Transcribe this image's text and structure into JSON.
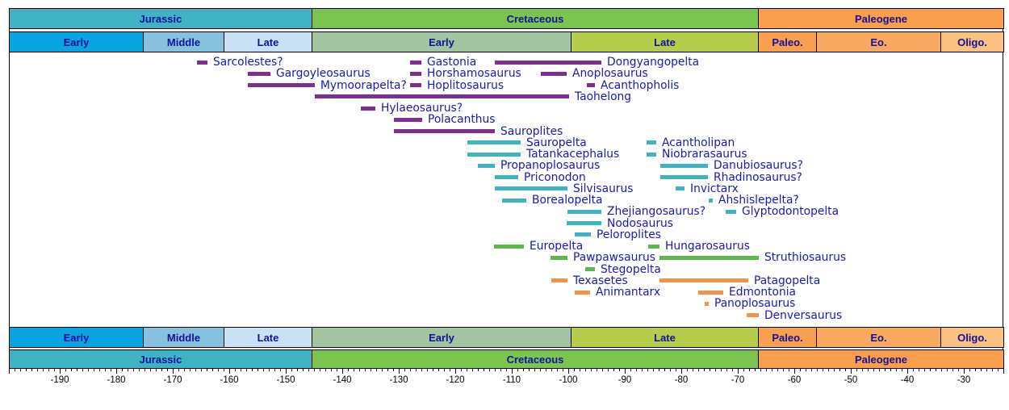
{
  "chart_data": {
    "type": "timeline",
    "x_axis": {
      "unit": "Ma",
      "min": -199,
      "max": -23,
      "major_ticks": [
        -190,
        -180,
        -170,
        -160,
        -150,
        -140,
        -130,
        -120,
        -110,
        -100,
        -90,
        -80,
        -70,
        -60,
        -50,
        -40,
        -30
      ],
      "minor_tick_step": 1
    },
    "periods": [
      {
        "label": "Jurassic",
        "from": -199,
        "to": -145.4,
        "color": "#3fb2c4"
      },
      {
        "label": "Cretaceous",
        "from": -145.4,
        "to": -66.4,
        "color": "#7cc450"
      },
      {
        "label": "Paleogene",
        "from": -66.4,
        "to": -23,
        "color": "#f99e4c"
      }
    ],
    "epochs": [
      {
        "label": "Early",
        "from": -199,
        "to": -175.3,
        "color": "#09a5e0"
      },
      {
        "label": "Middle",
        "from": -175.3,
        "to": -161.0,
        "color": "#87c1dd"
      },
      {
        "label": "Late",
        "from": -161.0,
        "to": -145.4,
        "color": "#c9e1f4"
      },
      {
        "label": "Early",
        "from": -145.4,
        "to": -99.6,
        "color": "#a2c4a0"
      },
      {
        "label": "Late",
        "from": -99.6,
        "to": -66.4,
        "color": "#b5cd4a"
      },
      {
        "label": "Paleo.",
        "from": -66.4,
        "to": -56.1,
        "color": "#f9a050"
      },
      {
        "label": "Eo.",
        "from": -56.1,
        "to": -34.1,
        "color": "#faaa60"
      },
      {
        "label": "Oligo.",
        "from": -34.1,
        "to": -23,
        "color": "#fbc181"
      }
    ],
    "groups": {
      "purple": "#7e2d90",
      "teal": "#3fb3c4",
      "green": "#5cb84a",
      "orange": "#ef9449"
    },
    "taxa": [
      {
        "name": "Sarcolestes?",
        "group": "purple",
        "from": -165.7,
        "to": -163.9,
        "row": 1
      },
      {
        "name": "Gastonia",
        "group": "purple",
        "from": -128.0,
        "to": -126.0,
        "row": 1
      },
      {
        "name": "Dongyangopelta",
        "group": "purple",
        "from": -113.0,
        "to": -94.1,
        "row": 1
      },
      {
        "name": "Gargoyleosaurus",
        "group": "purple",
        "from": -156.7,
        "to": -152.7,
        "row": 2
      },
      {
        "name": "Horshamosaurus",
        "group": "purple",
        "from": -128.0,
        "to": -126.0,
        "row": 2
      },
      {
        "name": "Anoplosaurus",
        "group": "purple",
        "from": -104.9,
        "to": -100.3,
        "row": 2
      },
      {
        "name": "Mymoorapelta?",
        "group": "purple",
        "from": -156.7,
        "to": -144.9,
        "row": 3
      },
      {
        "name": "Hoplitosaurus",
        "group": "purple",
        "from": -128.0,
        "to": -126.0,
        "row": 3
      },
      {
        "name": "Acanthopholis",
        "group": "purple",
        "from": -96.7,
        "to": -95.3,
        "row": 3
      },
      {
        "name": "Taohelong",
        "group": "purple",
        "from": -144.9,
        "to": -99.9,
        "row": 4
      },
      {
        "name": "Hylaeosaurus?",
        "group": "purple",
        "from": -136.7,
        "to": -134.1,
        "row": 5
      },
      {
        "name": "Polacanthus",
        "group": "purple",
        "from": -130.8,
        "to": -125.8,
        "row": 6
      },
      {
        "name": "Sauroplites",
        "group": "purple",
        "from": -130.8,
        "to": -113.0,
        "row": 7
      },
      {
        "name": "Sauropelta",
        "group": "teal",
        "from": -117.9,
        "to": -108.5,
        "row": 8
      },
      {
        "name": "Acantholipan",
        "group": "teal",
        "from": -86.1,
        "to": -84.4,
        "row": 8
      },
      {
        "name": "Tatankacephalus",
        "group": "teal",
        "from": -117.9,
        "to": -108.5,
        "row": 9
      },
      {
        "name": "Niobrarasaurus",
        "group": "teal",
        "from": -86.1,
        "to": -84.4,
        "row": 9
      },
      {
        "name": "Propanoplosaurus",
        "group": "teal",
        "from": -116.0,
        "to": -113.0,
        "row": 10
      },
      {
        "name": "Danubiosaurus?",
        "group": "teal",
        "from": -83.7,
        "to": -75.3,
        "row": 10
      },
      {
        "name": "Priconodon",
        "group": "teal",
        "from": -113.0,
        "to": -108.9,
        "row": 11
      },
      {
        "name": "Rhadinosaurus?",
        "group": "teal",
        "from": -83.7,
        "to": -75.3,
        "row": 11
      },
      {
        "name": "Silvisaurus",
        "group": "teal",
        "from": -113.0,
        "to": -100.1,
        "row": 12
      },
      {
        "name": "Invictarx",
        "group": "teal",
        "from": -81.0,
        "to": -79.4,
        "row": 12
      },
      {
        "name": "Borealopelta",
        "group": "teal",
        "from": -111.7,
        "to": -107.4,
        "row": 13
      },
      {
        "name": "Ahshislepelta?",
        "group": "teal",
        "from": -75.2,
        "to": -74.5,
        "row": 13
      },
      {
        "name": "Zhejiangosaurus?",
        "group": "teal",
        "from": -100.1,
        "to": -94.1,
        "row": 14
      },
      {
        "name": "Glyptodontopelta",
        "group": "teal",
        "from": -72.1,
        "to": -70.3,
        "row": 14
      },
      {
        "name": "Nodosaurus",
        "group": "teal",
        "from": -100.3,
        "to": -94.1,
        "row": 15
      },
      {
        "name": "Peloroplites",
        "group": "teal",
        "from": -98.9,
        "to": -96.0,
        "row": 16
      },
      {
        "name": "Europelta",
        "group": "green",
        "from": -113.2,
        "to": -107.9,
        "row": 17
      },
      {
        "name": "Hungarosaurus",
        "group": "green",
        "from": -85.8,
        "to": -83.9,
        "row": 17
      },
      {
        "name": "Pawpawsaurus",
        "group": "green",
        "from": -103.2,
        "to": -100.1,
        "row": 18
      },
      {
        "name": "Struthiosaurus",
        "group": "green",
        "from": -83.9,
        "to": -66.3,
        "row": 18
      },
      {
        "name": "Stegopelta",
        "group": "green",
        "from": -97.0,
        "to": -95.3,
        "row": 19
      },
      {
        "name": "Texasetes",
        "group": "orange",
        "from": -103.0,
        "to": -100.1,
        "row": 20
      },
      {
        "name": "Patagopelta",
        "group": "orange",
        "from": -83.9,
        "to": -68.2,
        "row": 20
      },
      {
        "name": "Animantarx",
        "group": "orange",
        "from": -98.9,
        "to": -96.1,
        "row": 21
      },
      {
        "name": "Edmontonia",
        "group": "orange",
        "from": -77.0,
        "to": -72.6,
        "row": 21
      },
      {
        "name": "Panoplosaurus",
        "group": "orange",
        "from": -75.9,
        "to": -75.2,
        "row": 22
      },
      {
        "name": "Denversaurus",
        "group": "orange",
        "from": -68.4,
        "to": -66.3,
        "row": 23
      }
    ]
  }
}
